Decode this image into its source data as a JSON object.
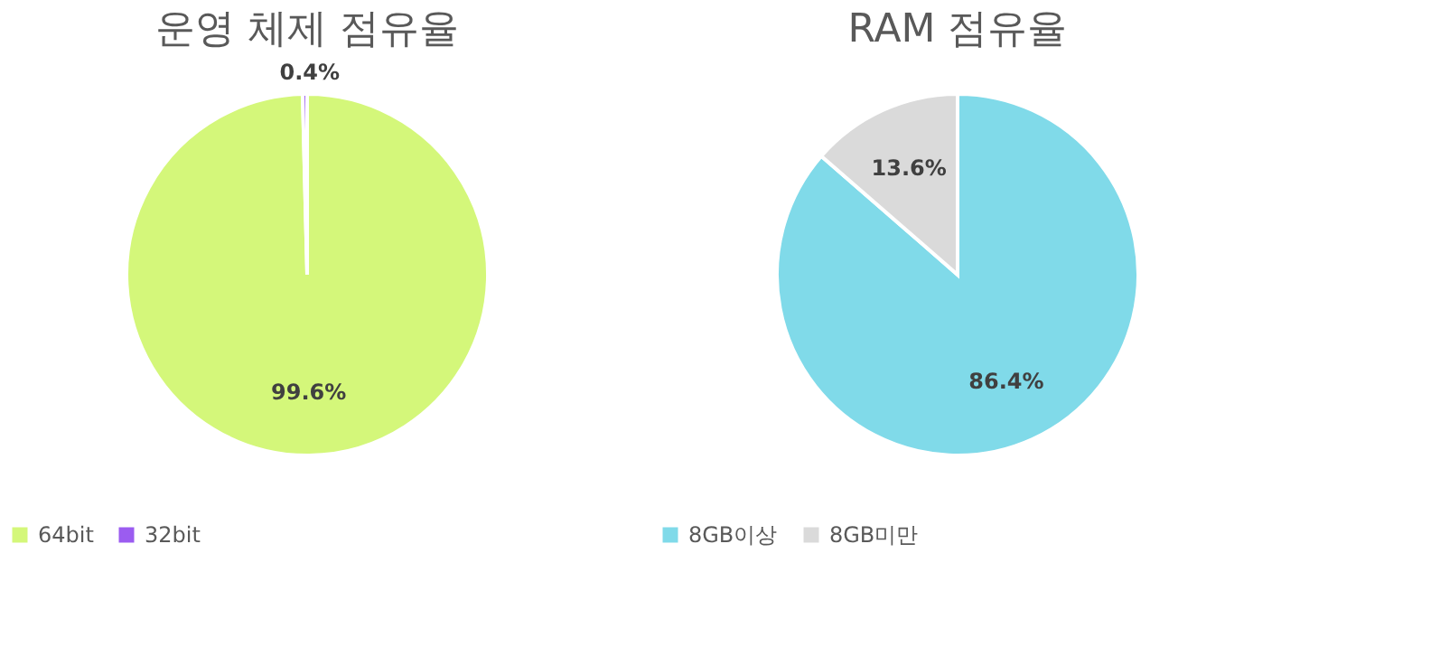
{
  "chart_data": [
    {
      "type": "pie",
      "title": "운영 체제 점유율",
      "categories": [
        "64bit",
        "32bit"
      ],
      "values": [
        99.6,
        0.4
      ],
      "colors": [
        "#d4f77a",
        "#9b5cf0"
      ],
      "value_labels": [
        "99.6%",
        "0.4%"
      ],
      "legend": "bottom"
    },
    {
      "type": "pie",
      "title": "RAM 점유율",
      "categories": [
        "8GB이상",
        "8GB미만"
      ],
      "values": [
        86.4,
        13.6
      ],
      "colors": [
        "#80dae9",
        "#dadada"
      ],
      "value_labels": [
        "86.4%",
        "13.6%"
      ],
      "legend": "bottom"
    }
  ]
}
